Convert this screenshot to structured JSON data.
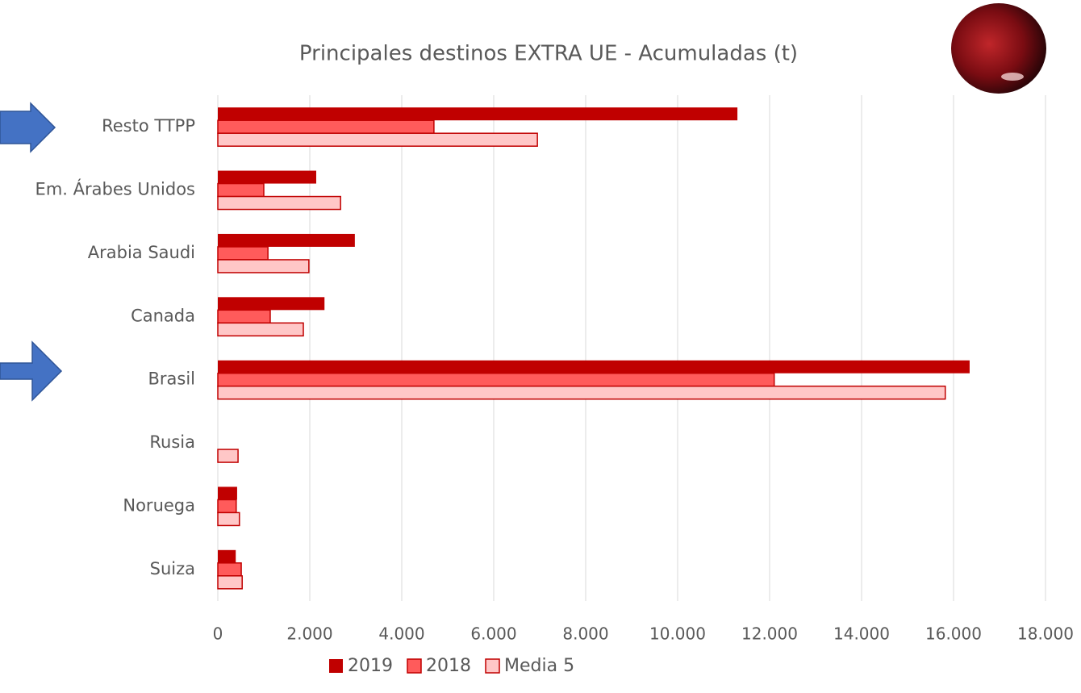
{
  "chart_data": {
    "type": "hbar",
    "title": "Principales destinos EXTRA UE - Acumuladas (t)",
    "categories": [
      "Resto TTPP",
      "Em. Árabes Unidos",
      "Arabia Saudi",
      "Canada",
      "Brasil",
      "Rusia",
      "Noruega",
      "Suiza"
    ],
    "series": [
      {
        "name": "2019",
        "color": "#c00000",
        "values": [
          11300,
          2140,
          2980,
          2320,
          16350,
          0,
          420,
          390
        ]
      },
      {
        "name": "2018",
        "color": "#ff5b5b",
        "values": [
          4700,
          1000,
          1090,
          1140,
          12100,
          0,
          400,
          510
        ]
      },
      {
        "name": "Media 5",
        "color": "#ffc7c7",
        "values": [
          6950,
          2670,
          1980,
          1860,
          15820,
          440,
          470,
          530
        ]
      }
    ],
    "xlim": [
      0,
      18000
    ],
    "xticks": [
      0,
      {
        "value": 2000,
        "label": "2.000"
      },
      {
        "value": 4000,
        "label": "4.000"
      },
      {
        "value": 6000,
        "label": "6.000"
      },
      {
        "value": 8000,
        "label": "8.000"
      },
      {
        "value": 10000,
        "label": "10.000"
      },
      {
        "value": 12000,
        "label": "12.000"
      },
      {
        "value": 14000,
        "label": "14.000"
      },
      {
        "value": 16000,
        "label": "16.000"
      },
      {
        "value": 18000,
        "label": "18.000"
      }
    ],
    "grid": true,
    "legend": "bottom"
  }
}
